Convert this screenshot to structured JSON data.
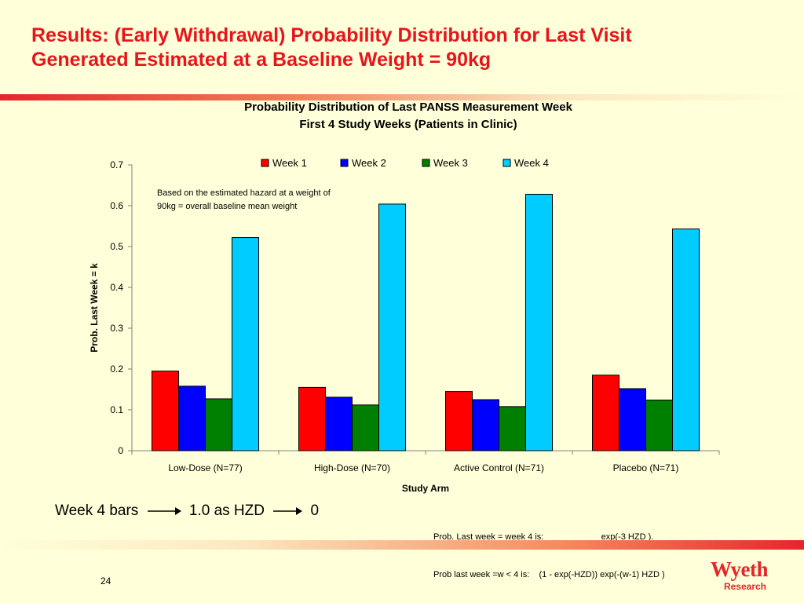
{
  "slide": {
    "title_line1": "Results: (Early Withdrawal) Probability Distribution for Last Visit",
    "title_line2": "Generated Estimated at a Baseline Weight = 90kg",
    "page_number": "24",
    "bottom_note": {
      "left_text": "Week 4 bars",
      "middle_text": "1.0 as HZD",
      "right_text": "0"
    },
    "formula_line1": "Prob. Last week = week 4 is:                        exp(-3 HZD ).",
    "formula_line2": "Prob last week =w < 4 is:    (1 - exp(-HZD)) exp(-(w-1) HZD )",
    "logo": {
      "name": "Wyeth",
      "sub": "Research"
    }
  },
  "colors": {
    "title": "#E8141C",
    "week1": "#FF0000",
    "week2": "#0000FF",
    "week3": "#008000",
    "week4": "#00CCFF"
  },
  "chart_data": {
    "type": "bar",
    "title_line1": "Probability Distribution of Last PANSS Measurement Week",
    "title_line2": "First 4 Study Weeks (Patients in Clinic)",
    "xlabel": "Study Arm",
    "ylabel": "Prob. Last Week = k",
    "ylim": [
      0,
      0.7
    ],
    "yticks": [
      "0",
      "0.1",
      "0.2",
      "0.3",
      "0.4",
      "0.5",
      "0.6",
      "0.7"
    ],
    "grid": false,
    "legend_placement": "top",
    "categories": [
      "Low-Dose (N=77)",
      "High-Dose (N=70)",
      "Active Control (N=71)",
      "Placebo (N=71)"
    ],
    "series": [
      {
        "name": "Week 1",
        "color": "#FF0000",
        "values": [
          0.195,
          0.155,
          0.145,
          0.185
        ]
      },
      {
        "name": "Week 2",
        "color": "#0000FF",
        "values": [
          0.158,
          0.131,
          0.125,
          0.152
        ]
      },
      {
        "name": "Week 3",
        "color": "#008000",
        "values": [
          0.127,
          0.112,
          0.108,
          0.124
        ]
      },
      {
        "name": "Week 4",
        "color": "#00CCFF",
        "values": [
          0.522,
          0.604,
          0.628,
          0.543
        ]
      }
    ],
    "annotation": "Based on the estimated hazard at a weight of 90kg = overall baseline mean weight"
  }
}
